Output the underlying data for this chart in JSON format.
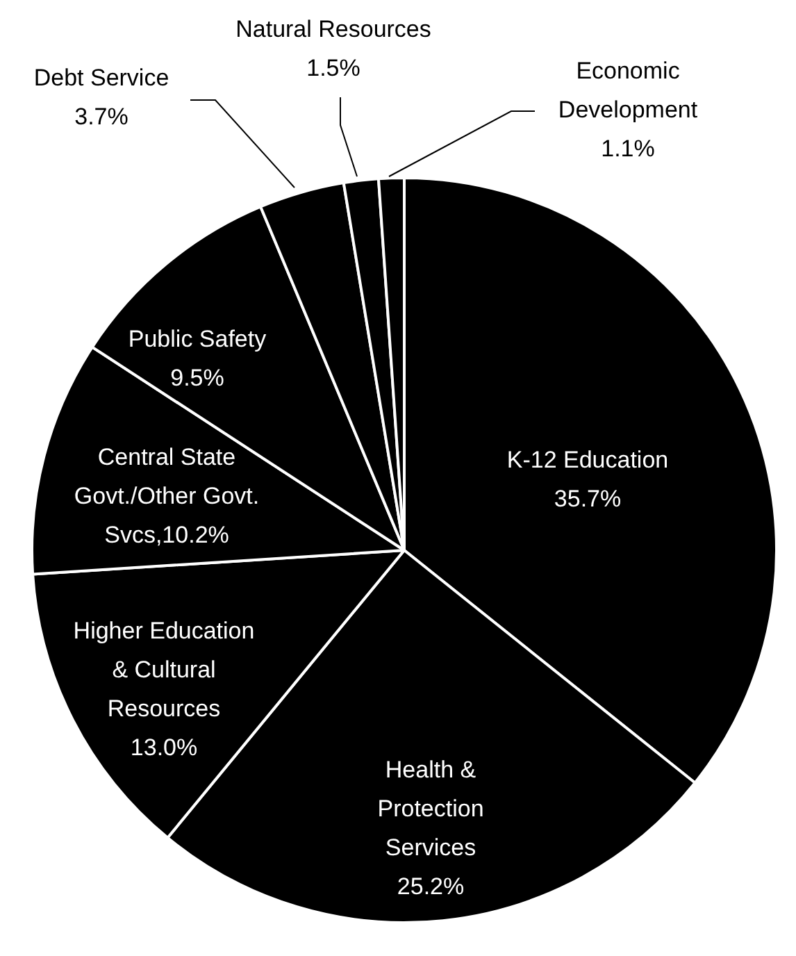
{
  "chart_data": {
    "type": "pie",
    "categories": [
      "K-12 Education",
      "Health & Protection Services",
      "Higher Education & Cultural Resources",
      "Central State Govt./Other Govt. Svcs",
      "Public Safety",
      "Debt Service",
      "Natural Resources",
      "Economic Development"
    ],
    "values": [
      35.7,
      25.2,
      13.0,
      10.2,
      9.5,
      3.7,
      1.5,
      1.1
    ],
    "value_labels": [
      "35.7%",
      "25.2%",
      "13.0%",
      "10.2%",
      "9.5%",
      "3.7%",
      "1.5%",
      "1.1%"
    ],
    "colors": [
      "#000000",
      "#000000",
      "#000000",
      "#000000",
      "#000000",
      "#000000",
      "#000000",
      "#000000"
    ],
    "legend": false
  }
}
